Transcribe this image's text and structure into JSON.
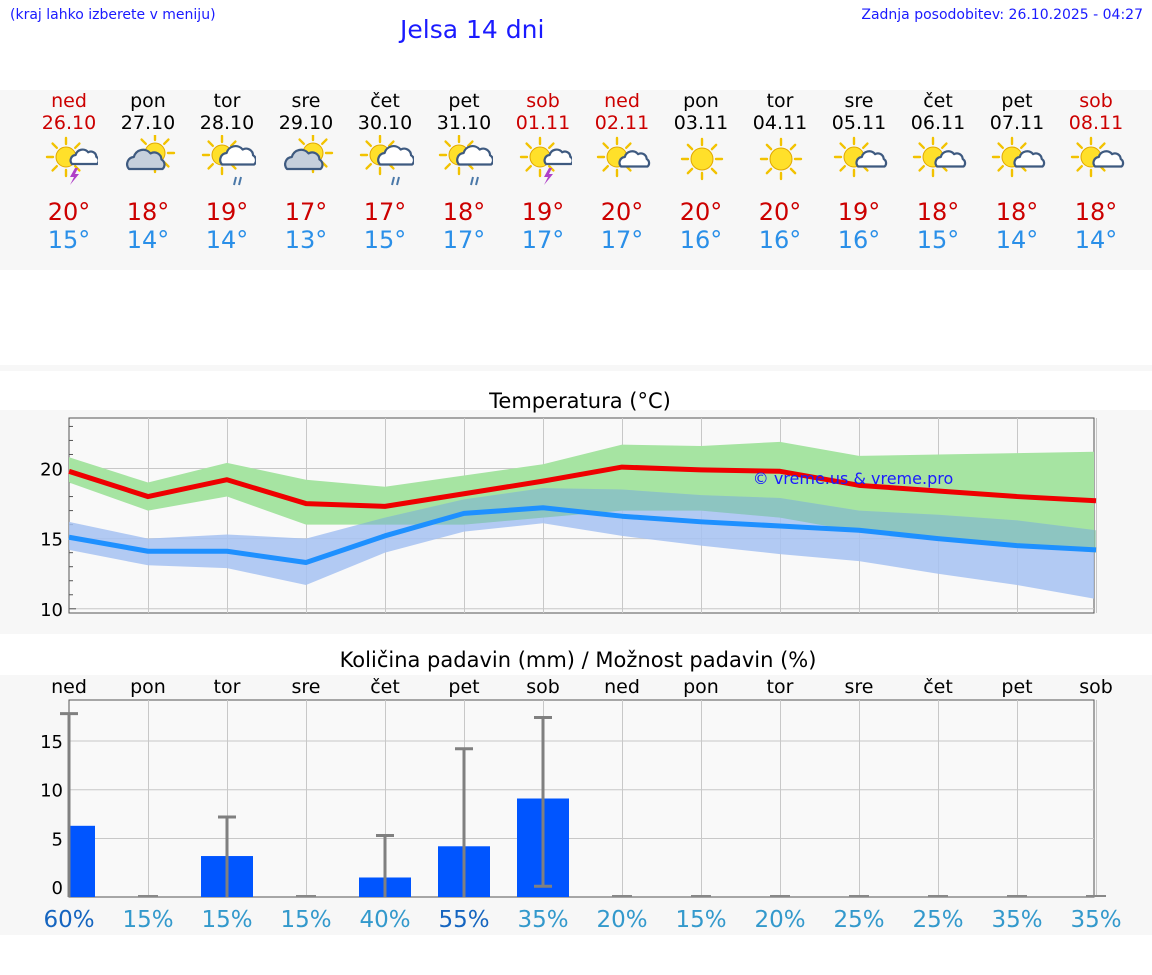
{
  "header": {
    "left_note": "(kraj lahko izberete v meniju)",
    "title": "Jelsa 14 dni",
    "updated": "Zadnja posodobitev: 26.10.2025 - 04:27"
  },
  "colors": {
    "max_line": "#ee0000",
    "min_line": "#1e90ff",
    "max_band": "#a6e4a2",
    "min_band": "#a6c2f2",
    "overlap_band": "#78c2a2",
    "bar": "#0055ff",
    "weekend": "#cc0000",
    "prob_dark": "#1565c0",
    "prob_light": "#3399cc"
  },
  "days": [
    {
      "name": "ned",
      "date": "26.10",
      "weekend": true,
      "icon": "sun-cloud-thunder-icon",
      "tmax": "20°",
      "tmin": "15°"
    },
    {
      "name": "pon",
      "date": "27.10",
      "weekend": false,
      "icon": "sun-cloud-icon",
      "tmax": "18°",
      "tmin": "14°"
    },
    {
      "name": "tor",
      "date": "28.10",
      "weekend": false,
      "icon": "sun-cloud-rain-icon",
      "tmax": "19°",
      "tmin": "14°"
    },
    {
      "name": "sre",
      "date": "29.10",
      "weekend": false,
      "icon": "sun-cloud-icon",
      "tmax": "17°",
      "tmin": "13°"
    },
    {
      "name": "čet",
      "date": "30.10",
      "weekend": false,
      "icon": "sun-cloud-rain-icon",
      "tmax": "17°",
      "tmin": "15°"
    },
    {
      "name": "pet",
      "date": "31.10",
      "weekend": false,
      "icon": "sun-cloud-rain-icon",
      "tmax": "18°",
      "tmin": "17°"
    },
    {
      "name": "sob",
      "date": "01.11",
      "weekend": true,
      "icon": "sun-thunder-icon",
      "tmax": "19°",
      "tmin": "17°"
    },
    {
      "name": "ned",
      "date": "02.11",
      "weekend": true,
      "icon": "sun-small-cloud-icon",
      "tmax": "20°",
      "tmin": "17°"
    },
    {
      "name": "pon",
      "date": "03.11",
      "weekend": false,
      "icon": "sun-icon",
      "tmax": "20°",
      "tmin": "16°"
    },
    {
      "name": "tor",
      "date": "04.11",
      "weekend": false,
      "icon": "sun-icon",
      "tmax": "20°",
      "tmin": "16°"
    },
    {
      "name": "sre",
      "date": "05.11",
      "weekend": false,
      "icon": "sun-small-cloud-icon",
      "tmax": "19°",
      "tmin": "16°"
    },
    {
      "name": "čet",
      "date": "06.11",
      "weekend": false,
      "icon": "sun-small-cloud-icon",
      "tmax": "18°",
      "tmin": "15°"
    },
    {
      "name": "pet",
      "date": "07.11",
      "weekend": false,
      "icon": "sun-small-cloud-icon",
      "tmax": "18°",
      "tmin": "14°"
    },
    {
      "name": "sob",
      "date": "08.11",
      "weekend": true,
      "icon": "sun-small-cloud-icon",
      "tmax": "18°",
      "tmin": "14°"
    }
  ],
  "chart_data": [
    {
      "type": "line",
      "title": "Temperatura (°C)",
      "ylim": [
        9.7,
        23.6
      ],
      "yticks": [
        10,
        15,
        20
      ],
      "grid": true,
      "x": [
        0,
        1,
        2,
        3,
        4,
        5,
        6,
        7,
        8,
        9,
        10,
        11,
        12,
        13
      ],
      "series": [
        {
          "name": "max",
          "values": [
            19.8,
            18.0,
            19.2,
            17.5,
            17.3,
            18.2,
            19.1,
            20.1,
            19.9,
            19.8,
            18.8,
            18.4,
            18.0,
            17.7
          ],
          "band_low": [
            19.0,
            17.0,
            18.0,
            16.0,
            16.0,
            16.0,
            16.5,
            17.0,
            17.0,
            16.5,
            15.5,
            15.0,
            14.5,
            14.0
          ],
          "band_high": [
            20.8,
            19.0,
            20.4,
            19.2,
            18.7,
            19.5,
            20.3,
            21.7,
            21.6,
            21.9,
            20.9,
            21.0,
            21.1,
            21.2
          ]
        },
        {
          "name": "min",
          "values": [
            15.1,
            14.1,
            14.1,
            13.3,
            15.2,
            16.8,
            17.2,
            16.6,
            16.2,
            15.9,
            15.6,
            15.0,
            14.5,
            14.2
          ],
          "band_low": [
            14.2,
            13.1,
            12.9,
            11.7,
            14.0,
            15.5,
            16.1,
            15.2,
            14.5,
            13.9,
            13.4,
            12.5,
            11.7,
            10.7
          ],
          "band_high": [
            16.2,
            15.0,
            15.3,
            15.0,
            16.5,
            17.8,
            18.6,
            18.5,
            18.1,
            17.9,
            17.0,
            16.7,
            16.3,
            15.6
          ]
        }
      ],
      "watermark": "© vreme.us & vreme.pro"
    },
    {
      "type": "bar",
      "title": "Količina padavin (mm) / Možnost padavin (%)",
      "ylim": [
        -1.0,
        19.2
      ],
      "yticks": [
        0,
        5,
        10,
        15
      ],
      "grid": true,
      "categories": [
        "ned",
        "pon",
        "tor",
        "sre",
        "čet",
        "pet",
        "sob",
        "ned",
        "pon",
        "tor",
        "sre",
        "čet",
        "pet",
        "sob"
      ],
      "values": [
        6.3,
        0,
        3.2,
        0,
        1.0,
        4.2,
        9.1,
        0,
        0,
        0,
        0,
        0,
        0,
        0
      ],
      "error_high": [
        17.8,
        null,
        7.2,
        null,
        5.3,
        14.2,
        17.4,
        null,
        null,
        null,
        null,
        null,
        null,
        null
      ],
      "error_low": [
        null,
        null,
        -1.0,
        null,
        -1.0,
        -1.0,
        0.1,
        null,
        null,
        null,
        null,
        null,
        null,
        null
      ],
      "probability": [
        "60%",
        "15%",
        "15%",
        "15%",
        "40%",
        "55%",
        "35%",
        "20%",
        "15%",
        "20%",
        "25%",
        "25%",
        "35%",
        "35%"
      ],
      "prob_emphasis": [
        true,
        false,
        false,
        false,
        false,
        true,
        false,
        false,
        false,
        false,
        false,
        false,
        false,
        false
      ]
    }
  ]
}
